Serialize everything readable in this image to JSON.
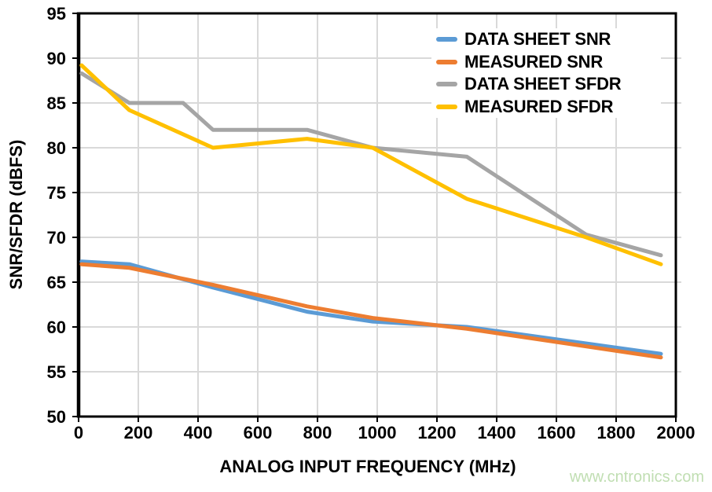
{
  "watermark": "www.cntronics.com",
  "chart_data": {
    "type": "line",
    "title": "",
    "xlabel": "ANALOG INPUT FREQUENCY (MHz)",
    "ylabel": "SNR/SFDR (dBFS)",
    "xlim": [
      0,
      2000
    ],
    "ylim": [
      50,
      95
    ],
    "x_ticks": [
      0,
      200,
      400,
      600,
      800,
      1000,
      1200,
      1400,
      1600,
      1800,
      2000
    ],
    "y_ticks": [
      50,
      55,
      60,
      65,
      70,
      75,
      80,
      85,
      90,
      95
    ],
    "grid": true,
    "legend_position": "top-right-inside",
    "axis_color": "#000000",
    "gridline_color": "#D9D9D9",
    "series": [
      {
        "name": "DATA SHEET SNR",
        "color": "#5B9BD5",
        "points": [
          [
            10,
            67.3
          ],
          [
            170,
            67.0
          ],
          [
            450,
            64.4
          ],
          [
            765,
            61.7
          ],
          [
            985,
            60.6
          ],
          [
            1300,
            60.0
          ],
          [
            1950,
            57.0
          ]
        ]
      },
      {
        "name": "MEASURED SNR",
        "color": "#ED7D31",
        "points": [
          [
            10,
            67.0
          ],
          [
            170,
            66.6
          ],
          [
            450,
            64.7
          ],
          [
            765,
            62.3
          ],
          [
            985,
            61.0
          ],
          [
            1300,
            59.8
          ],
          [
            1950,
            56.6
          ]
        ]
      },
      {
        "name": "DATA SHEET SFDR",
        "color": "#A5A5A5",
        "points": [
          [
            10,
            88.3
          ],
          [
            170,
            85.0
          ],
          [
            350,
            85.0
          ],
          [
            450,
            82.0
          ],
          [
            765,
            82.0
          ],
          [
            985,
            80.0
          ],
          [
            1300,
            79.0
          ],
          [
            1700,
            70.3
          ],
          [
            1950,
            68.0
          ]
        ]
      },
      {
        "name": "MEASURED SFDR",
        "color": "#FFC000",
        "points": [
          [
            10,
            89.2
          ],
          [
            170,
            84.2
          ],
          [
            450,
            80.0
          ],
          [
            765,
            81.0
          ],
          [
            985,
            80.0
          ],
          [
            1300,
            74.3
          ],
          [
            1700,
            70.0
          ],
          [
            1950,
            67.0
          ]
        ]
      }
    ]
  }
}
